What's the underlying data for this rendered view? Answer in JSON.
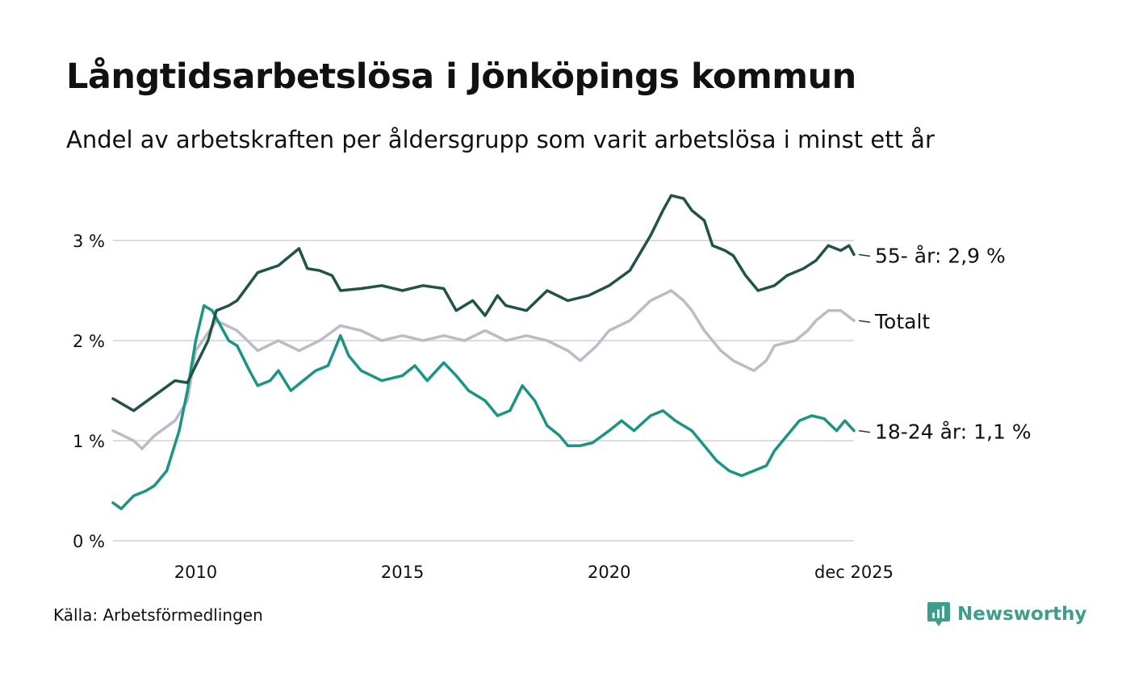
{
  "header": {
    "title": "Långtidsarbetslösa i Jönköpings kommun",
    "subtitle": "Andel av arbetskraften per åldersgrupp som varit arbetslösa i minst ett år"
  },
  "footer": {
    "source": "Källa: Arbetsförmedlingen",
    "brand": "Newsworthy"
  },
  "colors": {
    "older": "#22534a",
    "total": "#bcbbc7",
    "young": "#1a9484",
    "grid": "#dddddd",
    "brand": "#3f9d8c"
  },
  "chart_data": {
    "type": "line",
    "title": "Långtidsarbetslösa i Jönköpings kommun",
    "xlabel": "",
    "ylabel": "",
    "ylim": [
      0,
      3.5
    ],
    "xlim": [
      2008.0,
      2025.92
    ],
    "grid": true,
    "y_ticks": [
      {
        "value": 0,
        "label": "0 %"
      },
      {
        "value": 1,
        "label": "1 %"
      },
      {
        "value": 2,
        "label": "2 %"
      },
      {
        "value": 3,
        "label": "3 %"
      }
    ],
    "x_ticks": [
      {
        "value": 2010,
        "label": "2010"
      },
      {
        "value": 2015,
        "label": "2015"
      },
      {
        "value": 2020,
        "label": "2020"
      },
      {
        "value": 2025.92,
        "label": "dec 2025"
      }
    ],
    "series": [
      {
        "name": "55- år",
        "label": "55- år: 2,9 %",
        "color_key": "older",
        "x": [
          2008.0,
          2008.5,
          2009.0,
          2009.5,
          2009.8,
          2010.0,
          2010.3,
          2010.5,
          2010.8,
          2011.0,
          2011.5,
          2012.0,
          2012.5,
          2012.7,
          2013.0,
          2013.3,
          2013.5,
          2014.0,
          2014.5,
          2015.0,
          2015.5,
          2016.0,
          2016.3,
          2016.7,
          2017.0,
          2017.3,
          2017.5,
          2018.0,
          2018.5,
          2019.0,
          2019.5,
          2020.0,
          2020.5,
          2021.0,
          2021.3,
          2021.5,
          2021.8,
          2022.0,
          2022.3,
          2022.5,
          2022.8,
          2023.0,
          2023.3,
          2023.6,
          2024.0,
          2024.3,
          2024.7,
          2025.0,
          2025.3,
          2025.6,
          2025.8,
          2025.92
        ],
        "values": [
          1.42,
          1.3,
          1.45,
          1.6,
          1.58,
          1.75,
          2.0,
          2.3,
          2.35,
          2.4,
          2.68,
          2.75,
          2.92,
          2.72,
          2.7,
          2.65,
          2.5,
          2.52,
          2.55,
          2.5,
          2.55,
          2.52,
          2.3,
          2.4,
          2.25,
          2.45,
          2.35,
          2.3,
          2.5,
          2.4,
          2.45,
          2.55,
          2.7,
          3.05,
          3.3,
          3.45,
          3.42,
          3.3,
          3.2,
          2.95,
          2.9,
          2.85,
          2.65,
          2.5,
          2.55,
          2.65,
          2.72,
          2.8,
          2.95,
          2.9,
          2.95,
          2.86
        ]
      },
      {
        "name": "Totalt",
        "label": "Totalt",
        "color_key": "total",
        "x": [
          2008.0,
          2008.5,
          2008.7,
          2009.0,
          2009.5,
          2009.8,
          2010.0,
          2010.5,
          2011.0,
          2011.5,
          2012.0,
          2012.5,
          2013.0,
          2013.5,
          2014.0,
          2014.5,
          2015.0,
          2015.5,
          2016.0,
          2016.5,
          2017.0,
          2017.5,
          2018.0,
          2018.5,
          2019.0,
          2019.3,
          2019.7,
          2020.0,
          2020.5,
          2021.0,
          2021.5,
          2021.8,
          2022.0,
          2022.3,
          2022.7,
          2023.0,
          2023.5,
          2023.8,
          2024.0,
          2024.5,
          2024.8,
          2025.0,
          2025.3,
          2025.6,
          2025.92
        ],
        "values": [
          1.1,
          1.0,
          0.92,
          1.05,
          1.2,
          1.4,
          1.9,
          2.2,
          2.1,
          1.9,
          2.0,
          1.9,
          2.0,
          2.15,
          2.1,
          2.0,
          2.05,
          2.0,
          2.05,
          2.0,
          2.1,
          2.0,
          2.05,
          2.0,
          1.9,
          1.8,
          1.95,
          2.1,
          2.2,
          2.4,
          2.5,
          2.4,
          2.3,
          2.1,
          1.9,
          1.8,
          1.7,
          1.8,
          1.95,
          2.0,
          2.1,
          2.2,
          2.3,
          2.3,
          2.2
        ]
      },
      {
        "name": "18-24 år",
        "label": "18-24 år: 1,1 %",
        "color_key": "young",
        "x": [
          2008.0,
          2008.2,
          2008.5,
          2008.8,
          2009.0,
          2009.3,
          2009.6,
          2009.8,
          2010.0,
          2010.2,
          2010.4,
          2010.6,
          2010.8,
          2011.0,
          2011.3,
          2011.5,
          2011.8,
          2012.0,
          2012.3,
          2012.6,
          2012.9,
          2013.2,
          2013.5,
          2013.7,
          2014.0,
          2014.5,
          2015.0,
          2015.3,
          2015.6,
          2016.0,
          2016.3,
          2016.6,
          2017.0,
          2017.3,
          2017.6,
          2017.9,
          2018.2,
          2018.5,
          2018.8,
          2019.0,
          2019.3,
          2019.6,
          2020.0,
          2020.3,
          2020.6,
          2021.0,
          2021.3,
          2021.6,
          2022.0,
          2022.3,
          2022.6,
          2022.9,
          2023.2,
          2023.5,
          2023.8,
          2024.0,
          2024.3,
          2024.6,
          2024.9,
          2025.2,
          2025.5,
          2025.7,
          2025.92
        ],
        "values": [
          0.38,
          0.32,
          0.45,
          0.5,
          0.55,
          0.7,
          1.1,
          1.5,
          2.0,
          2.35,
          2.3,
          2.15,
          2.0,
          1.95,
          1.7,
          1.55,
          1.6,
          1.7,
          1.5,
          1.6,
          1.7,
          1.75,
          2.05,
          1.85,
          1.7,
          1.6,
          1.65,
          1.75,
          1.6,
          1.78,
          1.65,
          1.5,
          1.4,
          1.25,
          1.3,
          1.55,
          1.4,
          1.15,
          1.05,
          0.95,
          0.95,
          0.98,
          1.1,
          1.2,
          1.1,
          1.25,
          1.3,
          1.2,
          1.1,
          0.95,
          0.8,
          0.7,
          0.65,
          0.7,
          0.75,
          0.9,
          1.05,
          1.2,
          1.25,
          1.22,
          1.1,
          1.2,
          1.1
        ]
      }
    ]
  }
}
